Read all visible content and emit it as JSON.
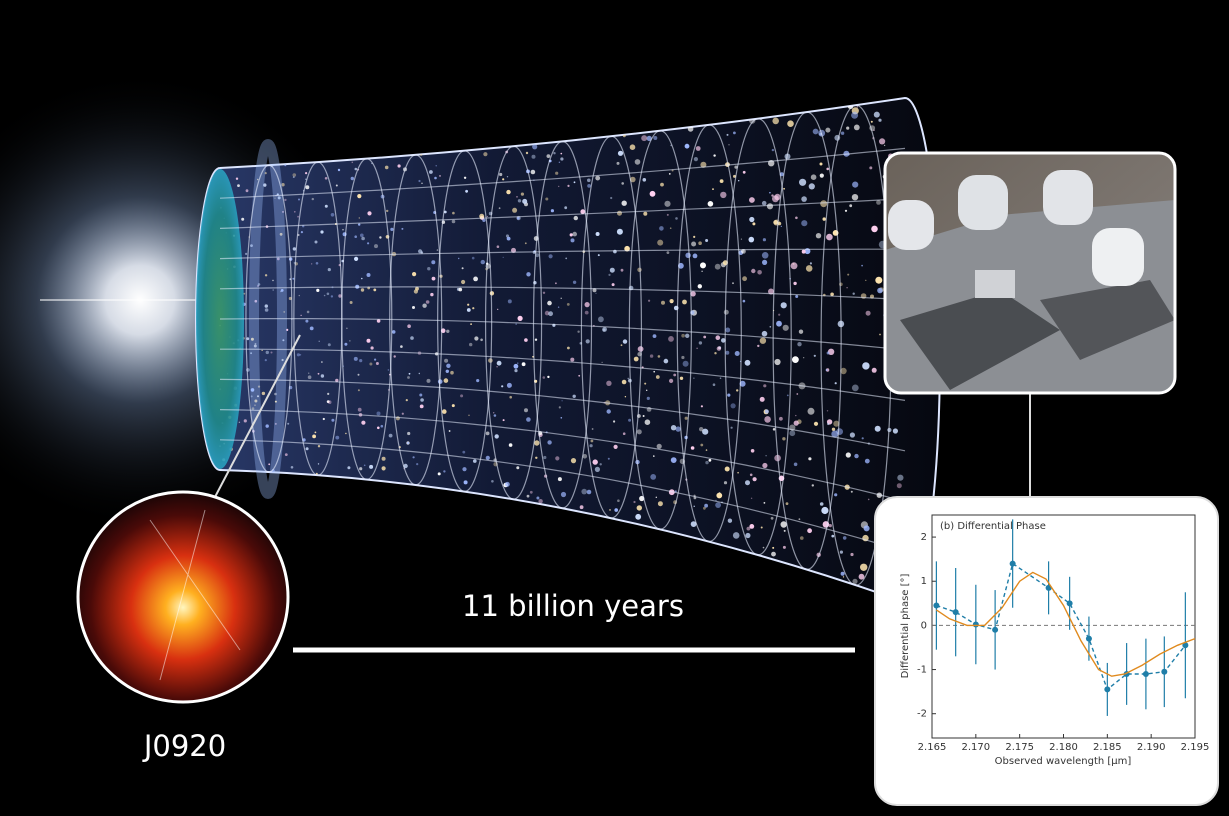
{
  "labels": {
    "time_span": "11 billion years",
    "object": "J0920"
  },
  "chart_data": {
    "type": "line",
    "title": "(b) Differential Phase",
    "xlabel": "Observed wavelength [μm]",
    "ylabel": "Differential phase [°]",
    "xlim": [
      2.165,
      2.195
    ],
    "xticks": [
      2.165,
      {
        "value": 2.17,
        "label": "2.170"
      },
      2.175,
      {
        "value": 2.18,
        "label": "2.180"
      },
      2.185,
      {
        "value": 2.19,
        "label": "2.190"
      },
      2.195
    ],
    "ylim": [
      -2.55,
      2.5
    ],
    "yticks": [
      -2,
      -1,
      0,
      1,
      2
    ],
    "reference_line": 0,
    "series": [
      {
        "color": "#1f7ea8",
        "dashed": true,
        "markers": true,
        "x": [
          2.1655,
          2.1677,
          2.17,
          2.1722,
          2.1742,
          2.1783,
          2.1807,
          2.1829,
          2.185,
          2.1872,
          2.1894,
          2.1915,
          2.1939
        ],
        "values": [
          0.45,
          0.3,
          0.02,
          -0.1,
          1.4,
          0.85,
          0.5,
          -0.3,
          -1.45,
          -1.1,
          -1.1,
          -1.05,
          -0.45
        ],
        "errors": [
          1.0,
          1.0,
          0.9,
          0.9,
          1.0,
          0.6,
          0.6,
          0.5,
          0.6,
          0.7,
          0.8,
          0.8,
          1.2
        ]
      },
      {
        "color": "#e08a1e",
        "dashed": false,
        "markers": false,
        "x": [
          2.1655,
          2.167,
          2.169,
          2.171,
          2.173,
          2.175,
          2.1765,
          2.178,
          2.18,
          2.182,
          2.184,
          2.1855,
          2.187,
          2.189,
          2.191,
          2.193,
          2.195
        ],
        "values": [
          0.35,
          0.15,
          0,
          0,
          0.4,
          1.0,
          1.2,
          1.05,
          0.45,
          -0.35,
          -1.0,
          -1.15,
          -1.1,
          -0.9,
          -0.65,
          -0.45,
          -0.3
        ]
      }
    ]
  }
}
